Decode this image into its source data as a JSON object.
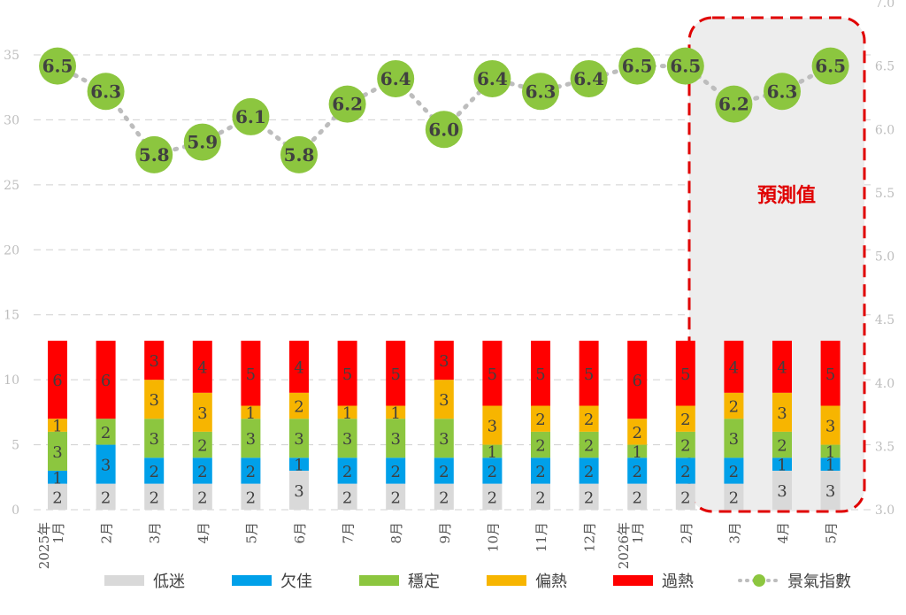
{
  "chart_data": {
    "type": "bar",
    "stacked": true,
    "categories": [
      "2025年\n1月",
      "2月",
      "3月",
      "4月",
      "5月",
      "6月",
      "7月",
      "8月",
      "9月",
      "10月",
      "11月",
      "12月",
      "2026年\n1月",
      "2月",
      "3月",
      "4月",
      "5月"
    ],
    "left_axis": {
      "ticks": [
        "0",
        "5",
        "10",
        "15",
        "20",
        "25",
        "30",
        "35"
      ],
      "ylim": [
        0,
        35
      ]
    },
    "right_axis": {
      "ticks": [
        "3.0",
        "3.5",
        "4.0",
        "4.5",
        "5.0",
        "5.5",
        "6.0",
        "6.5",
        "7.0"
      ],
      "ylim": [
        3.0,
        7.0
      ]
    },
    "series": [
      {
        "name": "低迷",
        "color": "#d9d9d9",
        "values": [
          2,
          2,
          2,
          2,
          2,
          3,
          2,
          2,
          2,
          2,
          2,
          2,
          2,
          2,
          2,
          3,
          3
        ]
      },
      {
        "name": "欠佳",
        "color": "#00a0e9",
        "values": [
          1,
          3,
          2,
          2,
          2,
          1,
          2,
          2,
          2,
          2,
          2,
          2,
          2,
          2,
          2,
          1,
          1
        ]
      },
      {
        "name": "穩定",
        "color": "#8cc63f",
        "values": [
          3,
          2,
          3,
          2,
          3,
          3,
          3,
          3,
          3,
          1,
          2,
          2,
          1,
          2,
          3,
          2,
          1
        ]
      },
      {
        "name": "偏熱",
        "color": "#f7b500",
        "values": [
          1,
          0,
          3,
          3,
          1,
          2,
          1,
          1,
          3,
          3,
          2,
          2,
          2,
          2,
          2,
          3,
          3
        ]
      },
      {
        "name": "過熱",
        "color": "#ff0000",
        "values": [
          6,
          6,
          3,
          4,
          5,
          4,
          5,
          5,
          3,
          5,
          5,
          5,
          6,
          5,
          4,
          4,
          5
        ]
      }
    ],
    "line": {
      "name": "景氣指數",
      "color": "#8cc63f",
      "values": [
        6.5,
        6.3,
        5.8,
        5.9,
        6.1,
        5.8,
        6.2,
        6.4,
        6.0,
        6.4,
        6.3,
        6.4,
        6.5,
        6.5,
        6.2,
        6.3,
        6.5
      ]
    },
    "annotation": {
      "text": "預測值",
      "color": "#e00000"
    },
    "grid": true,
    "legend": "bottom"
  }
}
